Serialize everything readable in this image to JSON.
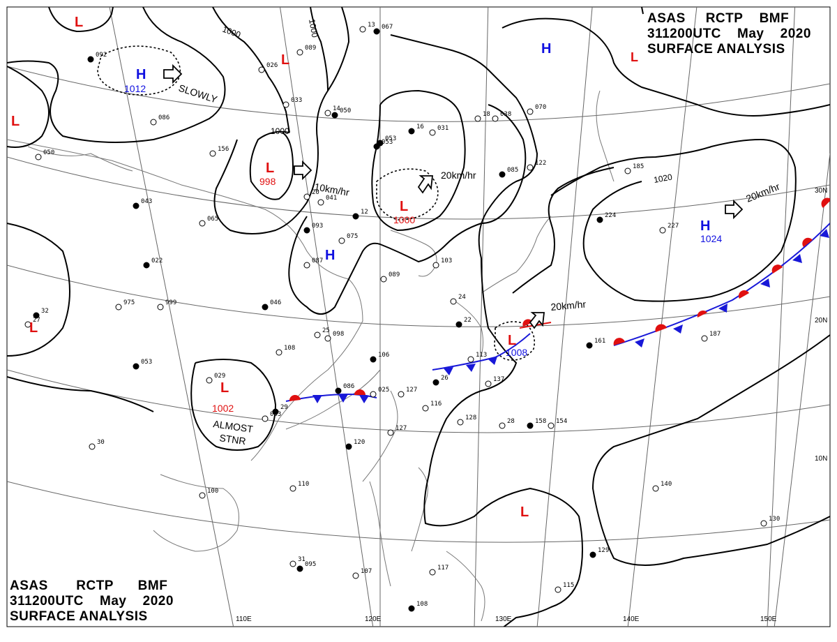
{
  "header": {
    "line1_parts": [
      "ASAS",
      "RCTP",
      "BMF"
    ],
    "line2_parts": [
      "311200UTC",
      "May",
      "2020"
    ],
    "line3": "SURFACE ANALYSIS",
    "red_L_glyph": "L"
  },
  "lat_labels": [
    "30N",
    "20N",
    "10N"
  ],
  "lon_labels": [
    "110E",
    "120E",
    "130E",
    "140E",
    "150E"
  ],
  "isobar_labels": [
    "1000",
    "1000",
    "1000",
    "1020"
  ],
  "pressure_centers": [
    {
      "type": "L",
      "value": ""
    },
    {
      "type": "H",
      "value": "1012"
    },
    {
      "type": "L",
      "value": ""
    },
    {
      "type": "L",
      "value": "998"
    },
    {
      "type": "L",
      "value": "1000"
    },
    {
      "type": "H",
      "value": ""
    },
    {
      "type": "H",
      "value": ""
    },
    {
      "type": "H",
      "value": "1024"
    },
    {
      "type": "L",
      "value": ""
    },
    {
      "type": "L",
      "value": "1002"
    },
    {
      "type": "L",
      "value": "1008"
    },
    {
      "type": "L",
      "value": ""
    },
    {
      "type": "L",
      "value": ""
    }
  ],
  "movement_labels": [
    "SLOWLY",
    "10km/hr",
    "20km/hr",
    "20km/hr",
    "20km/hr",
    "ALMOST",
    "STNR"
  ],
  "station_numbers": [
    "067",
    "089",
    "033",
    "050",
    "038",
    "031",
    "053",
    "156",
    "041",
    "093",
    "075",
    "087",
    "022",
    "975",
    "999",
    "046",
    "098",
    "108",
    "106",
    "113",
    "127",
    "086",
    "116",
    "128",
    "158",
    "154",
    "137",
    "120",
    "100",
    "110",
    "095",
    "107",
    "117",
    "108",
    "140",
    "130",
    "129",
    "115",
    "187",
    "161",
    "227",
    "185",
    "224",
    "070",
    "122",
    "085",
    "103",
    "089",
    "053",
    "063",
    "029",
    "092",
    "086",
    "065",
    "043",
    "050",
    "026",
    "12",
    "025",
    "127",
    "053",
    "13",
    "14",
    "16",
    "18",
    "20",
    "22",
    "24",
    "25",
    "26",
    "27",
    "28",
    "29",
    "30",
    "31",
    "32"
  ],
  "colors": {
    "high": "#1010e0",
    "low": "#e01010",
    "warm_front": "#e01010",
    "cold_front": "#1818d8",
    "isobar": "#000000",
    "grid": "#555555"
  },
  "icons": {
    "move_arrow": "hollow-right-arrow-icon",
    "station": "station-model-icon"
  }
}
